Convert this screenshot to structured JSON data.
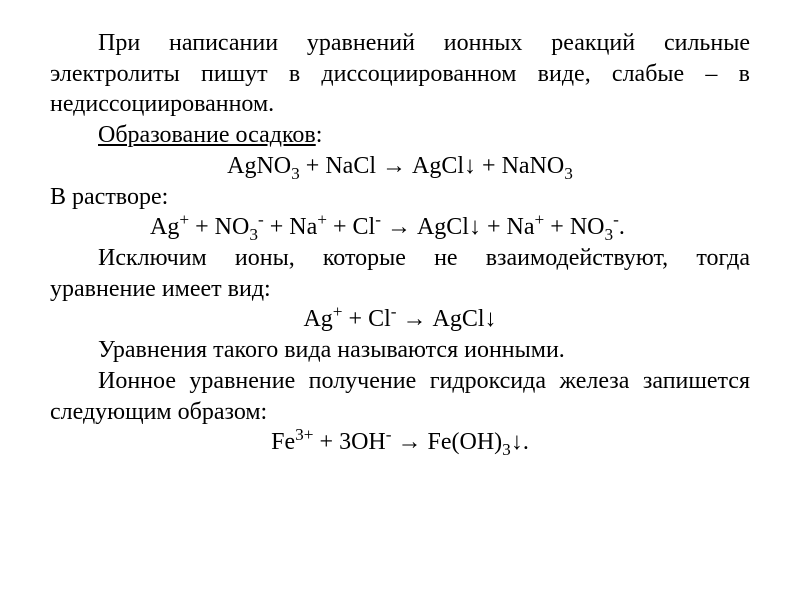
{
  "document": {
    "font_family": "Times New Roman",
    "font_size_pt": 18,
    "text_color": "#000000",
    "background_color": "#ffffff",
    "para1": "При написании уравнений ионных реакций сильные электролиты пишут в диссоциированном виде, слабые – в недиссоциированном.",
    "heading1": "Образование осадков",
    "colon": ":",
    "label_solution": "В растворе:",
    "para2": "Исключим ионы, которые не взаимодействуют, тогда уравнение имеет вид:",
    "para3": "Уравнения такого вида называются ионными.",
    "para4": "Ионное уравнение получение гидроксида железа запишется следующим образом:",
    "eq1": {
      "AgNO3": "AgNO",
      "s3": "3",
      "plus1": " + ",
      "NaCl": "NaCl",
      "arr": " → ",
      "AgCl": "AgCl",
      "down": "↓ ",
      "plus2": " + ",
      "NaNO3": "NaNO",
      "s3b": "3"
    },
    "eq2": {
      "Ag": "Ag",
      "pAg": "+",
      "sp1": " + ",
      "NO": "NO",
      "s3": "3",
      "mNO": "-",
      "sp2": " + ",
      "Na": "Na",
      "pNa": "+",
      "sp3": " + ",
      "Cl": "Cl",
      "mCl": "-",
      "arr": " → ",
      "AgCl": "AgCl",
      "down": "↓",
      "sp4": " + ",
      "Na2": "Na",
      "pNa2": "+",
      "sp5": " + ",
      "NO2": "NO",
      "s3b": "3",
      "mNO2": "-",
      "dot": "."
    },
    "eq3": {
      "Ag": "Ag",
      "pAg": "+",
      "sp1": " + ",
      "Cl": "Cl",
      "mCl": "-",
      "arr": " → ",
      "AgCl": "AgCl",
      "down": "↓"
    },
    "eq4": {
      "Fe": "Fe",
      "pFe": "3+",
      "sp1": "  +  ",
      "three": "3",
      "OH": "OH",
      "mOH": "-",
      "arr": " → ",
      "FeOH": "Fe(OH)",
      "s3": "3",
      "down": "↓",
      "dot": "."
    }
  }
}
